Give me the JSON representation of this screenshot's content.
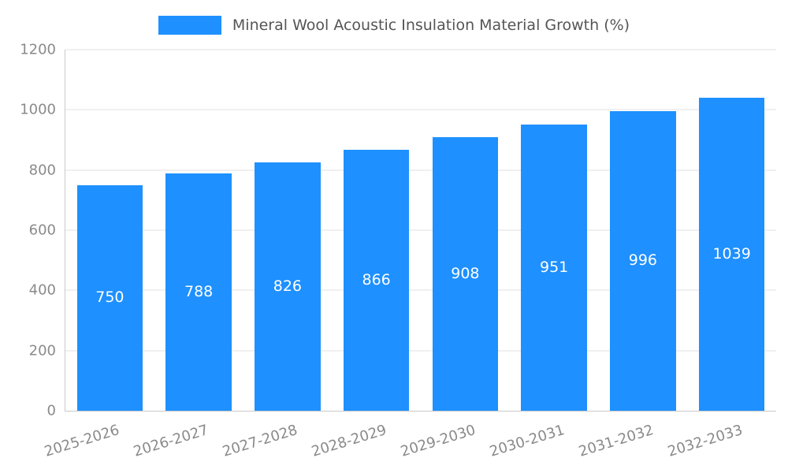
{
  "chart_data": {
    "type": "bar",
    "title": "Mineral Wool Acoustic Insulation Material Growth (%)",
    "categories": [
      "2025-2026",
      "2026-2027",
      "2027-2028",
      "2028-2029",
      "2029-2030",
      "2030-2031",
      "2031-2032",
      "2032-2033"
    ],
    "values": [
      750,
      788,
      826,
      866,
      908,
      951,
      996,
      1039
    ],
    "xlabel": "",
    "ylabel": "",
    "ylim": [
      0,
      1200
    ],
    "yticks": [
      0,
      200,
      400,
      600,
      800,
      1000,
      1200
    ],
    "grid": "horizontal",
    "legend_position": "top-center",
    "bar_color": "#1E90FF",
    "value_label_color": "#ffffff",
    "tick_label_color": "#8a8a8a",
    "title_color": "#555555"
  }
}
